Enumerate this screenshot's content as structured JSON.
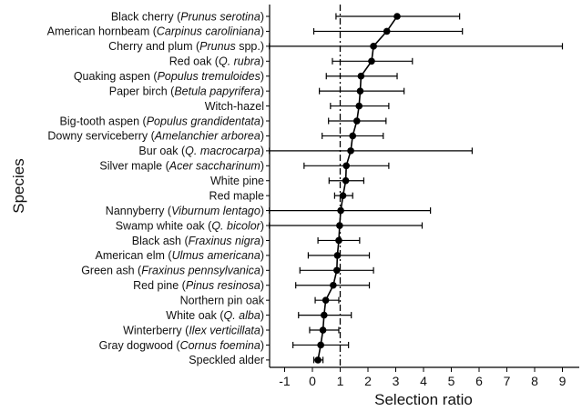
{
  "chart_data": {
    "type": "scatter",
    "xlabel": "Selection ratio",
    "ylabel": "Species",
    "xlim": [
      -1.6,
      9.5
    ],
    "xticks": [
      "-1",
      "0",
      "1",
      "2",
      "3",
      "4",
      "5",
      "6",
      "7",
      "8",
      "9"
    ],
    "reference_line": {
      "x": 1,
      "style": "dash-dot"
    },
    "grid": false,
    "categories": [
      {
        "name": "Black cherry",
        "sci": "Prunus serotina"
      },
      {
        "name": "American hornbeam",
        "sci": "Carpinus caroliniana"
      },
      {
        "name": "Cherry and plum",
        "sci": "Prunus",
        "suffix": " spp."
      },
      {
        "name": "Red oak",
        "sci": "Q. rubra"
      },
      {
        "name": "Quaking aspen",
        "sci": "Populus tremuloides"
      },
      {
        "name": "Paper birch",
        "sci": "Betula papyrifera"
      },
      {
        "name": "Witch-hazel",
        "sci": ""
      },
      {
        "name": "Big-tooth aspen",
        "sci": "Populus grandidentata"
      },
      {
        "name": "Downy serviceberry",
        "sci": "Amelanchier arborea"
      },
      {
        "name": "Bur oak",
        "sci": "Q. macrocarpa"
      },
      {
        "name": "Silver maple",
        "sci": "Acer saccharinum"
      },
      {
        "name": "White pine",
        "sci": ""
      },
      {
        "name": "Red maple",
        "sci": ""
      },
      {
        "name": "Nannyberry",
        "sci": "Viburnum lentago"
      },
      {
        "name": "Swamp white oak",
        "sci": "Q. bicolor"
      },
      {
        "name": "Black ash",
        "sci": "Fraxinus nigra"
      },
      {
        "name": "American elm",
        "sci": "Ulmus americana"
      },
      {
        "name": "Green ash",
        "sci": "Fraxinus pennsylvanica"
      },
      {
        "name": "Red pine",
        "sci": "Pinus resinosa"
      },
      {
        "name": "Northern pin oak",
        "sci": ""
      },
      {
        "name": "White oak",
        "sci": "Q. alba"
      },
      {
        "name": "Winterberry",
        "sci": "Ilex verticillata"
      },
      {
        "name": "Gray dogwood",
        "sci": "Cornus foemina"
      },
      {
        "name": "Speckled alder",
        "sci": ""
      }
    ],
    "values": [
      3.05,
      2.68,
      2.2,
      2.13,
      1.75,
      1.72,
      1.68,
      1.6,
      1.45,
      1.38,
      1.22,
      1.2,
      1.1,
      1.02,
      0.98,
      0.95,
      0.9,
      0.88,
      0.75,
      0.48,
      0.42,
      0.38,
      0.3,
      0.2
    ],
    "ci_low": [
      0.85,
      0.05,
      -1.55,
      0.72,
      0.5,
      0.25,
      0.65,
      0.58,
      0.35,
      -1.55,
      -0.3,
      0.6,
      0.8,
      -1.55,
      -1.55,
      0.2,
      -0.15,
      -0.45,
      -0.6,
      0.1,
      -0.5,
      -0.1,
      -0.7,
      0.05
    ],
    "ci_high": [
      5.3,
      5.4,
      9.0,
      3.6,
      3.05,
      3.3,
      2.75,
      2.65,
      2.55,
      5.75,
      2.75,
      1.85,
      1.45,
      4.25,
      3.95,
      1.7,
      2.05,
      2.2,
      2.05,
      0.95,
      1.4,
      0.95,
      1.3,
      0.38
    ]
  }
}
